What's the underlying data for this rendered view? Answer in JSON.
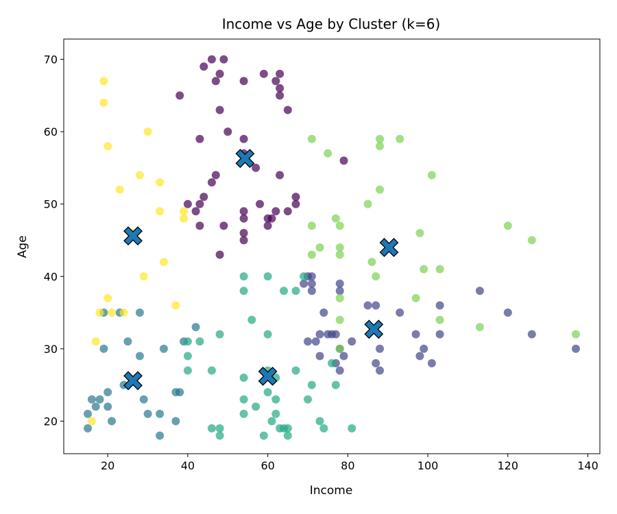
{
  "chart_data": {
    "type": "scatter",
    "title": "Income vs Age by Cluster (k=6)",
    "xlabel": "Income",
    "ylabel": "Age",
    "xlim": [
      9,
      143
    ],
    "ylim": [
      15.5,
      72.8
    ],
    "xticks": [
      20,
      40,
      60,
      80,
      100,
      120,
      140
    ],
    "yticks": [
      20,
      30,
      40,
      50,
      60,
      70
    ],
    "grid": false,
    "legend": "none",
    "colors": {
      "cluster_0": "#440154",
      "cluster_1": "#414487",
      "cluster_2": "#2a788e",
      "cluster_3": "#22a884",
      "cluster_4": "#7ad151",
      "cluster_5": "#fde725",
      "centroid": "#1f77b4"
    },
    "series": [
      {
        "cluster": 0,
        "points": [
          [
            46,
            70
          ],
          [
            49,
            70
          ],
          [
            44,
            69
          ],
          [
            48,
            68
          ],
          [
            59,
            68
          ],
          [
            63,
            68
          ],
          [
            47,
            67
          ],
          [
            54,
            67
          ],
          [
            62,
            67
          ],
          [
            63,
            66
          ],
          [
            63,
            65
          ],
          [
            38,
            65
          ],
          [
            48,
            63
          ],
          [
            65,
            63
          ],
          [
            50,
            60
          ],
          [
            43,
            59
          ],
          [
            54,
            59
          ],
          [
            54,
            57
          ],
          [
            57,
            55
          ],
          [
            79,
            56
          ],
          [
            47,
            54
          ],
          [
            63,
            54
          ],
          [
            46,
            53
          ],
          [
            67,
            51
          ],
          [
            44,
            51
          ],
          [
            43,
            50
          ],
          [
            58,
            50
          ],
          [
            67,
            50
          ],
          [
            40,
            50
          ],
          [
            42,
            49
          ],
          [
            54,
            49
          ],
          [
            62,
            49
          ],
          [
            65,
            49
          ],
          [
            54,
            48
          ],
          [
            60,
            48
          ],
          [
            61,
            48
          ],
          [
            43,
            47
          ],
          [
            49,
            47
          ],
          [
            60,
            47
          ],
          [
            54,
            46
          ],
          [
            54,
            45
          ],
          [
            48,
            43
          ]
        ]
      },
      {
        "cluster": 1,
        "points": [
          [
            70,
            40
          ],
          [
            71,
            40
          ],
          [
            69,
            39
          ],
          [
            71,
            39
          ],
          [
            78,
            39
          ],
          [
            71,
            38
          ],
          [
            78,
            38
          ],
          [
            113,
            38
          ],
          [
            74,
            35
          ],
          [
            93,
            35
          ],
          [
            120,
            35
          ],
          [
            85,
            36
          ],
          [
            87,
            36
          ],
          [
            103,
            36
          ],
          [
            73,
            32
          ],
          [
            75,
            32
          ],
          [
            76,
            32
          ],
          [
            77,
            32
          ],
          [
            97,
            32
          ],
          [
            103,
            32
          ],
          [
            126,
            32
          ],
          [
            70,
            31
          ],
          [
            72,
            31
          ],
          [
            81,
            31
          ],
          [
            78,
            30
          ],
          [
            88,
            30
          ],
          [
            99,
            30
          ],
          [
            137,
            30
          ],
          [
            73,
            29
          ],
          [
            79,
            29
          ],
          [
            98,
            29
          ],
          [
            77,
            28
          ],
          [
            87,
            28
          ],
          [
            101,
            28
          ],
          [
            78,
            27
          ],
          [
            88,
            27
          ]
        ]
      },
      {
        "cluster": 2,
        "points": [
          [
            19,
            35
          ],
          [
            23,
            35
          ],
          [
            28,
            35
          ],
          [
            39,
            31
          ],
          [
            25,
            31
          ],
          [
            42,
            33
          ],
          [
            19,
            30
          ],
          [
            34,
            30
          ],
          [
            28,
            29
          ],
          [
            24,
            25
          ],
          [
            20,
            24
          ],
          [
            37,
            24
          ],
          [
            38,
            24
          ],
          [
            16,
            23
          ],
          [
            18,
            23
          ],
          [
            29,
            23
          ],
          [
            17,
            22
          ],
          [
            20,
            22
          ],
          [
            30,
            21
          ],
          [
            33,
            21
          ],
          [
            15,
            21
          ],
          [
            21,
            20
          ],
          [
            37,
            20
          ],
          [
            15,
            19
          ],
          [
            33,
            18
          ]
        ]
      },
      {
        "cluster": 3,
        "points": [
          [
            54,
            40
          ],
          [
            60,
            40
          ],
          [
            54,
            38
          ],
          [
            64,
            38
          ],
          [
            67,
            38
          ],
          [
            69,
            40
          ],
          [
            56,
            34
          ],
          [
            48,
            32
          ],
          [
            60,
            32
          ],
          [
            40,
            31
          ],
          [
            43,
            31
          ],
          [
            40,
            29
          ],
          [
            40,
            27
          ],
          [
            46,
            27
          ],
          [
            67,
            27
          ],
          [
            76,
            28
          ],
          [
            54,
            26
          ],
          [
            62,
            26
          ],
          [
            60,
            27
          ],
          [
            71,
            25
          ],
          [
            77,
            25
          ],
          [
            60,
            24
          ],
          [
            54,
            23
          ],
          [
            62,
            23
          ],
          [
            70,
            23
          ],
          [
            57,
            22
          ],
          [
            54,
            21
          ],
          [
            62,
            21
          ],
          [
            61,
            20
          ],
          [
            73,
            20
          ],
          [
            63,
            19
          ],
          [
            64,
            19
          ],
          [
            65,
            19
          ],
          [
            46,
            19
          ],
          [
            48,
            19
          ],
          [
            74,
            19
          ],
          [
            81,
            19
          ],
          [
            48,
            18
          ],
          [
            59,
            18
          ],
          [
            65,
            18
          ]
        ]
      },
      {
        "cluster": 4,
        "points": [
          [
            71,
            59
          ],
          [
            88,
            59
          ],
          [
            93,
            59
          ],
          [
            75,
            57
          ],
          [
            88,
            58
          ],
          [
            101,
            54
          ],
          [
            88,
            52
          ],
          [
            85,
            50
          ],
          [
            77,
            48
          ],
          [
            71,
            47
          ],
          [
            78,
            47
          ],
          [
            120,
            47
          ],
          [
            98,
            46
          ],
          [
            126,
            45
          ],
          [
            73,
            44
          ],
          [
            78,
            44
          ],
          [
            78,
            43
          ],
          [
            71,
            43
          ],
          [
            86,
            42
          ],
          [
            99,
            41
          ],
          [
            103,
            41
          ],
          [
            87,
            40
          ],
          [
            78,
            37
          ],
          [
            97,
            37
          ],
          [
            78,
            34
          ],
          [
            103,
            34
          ],
          [
            113,
            33
          ],
          [
            137,
            32
          ],
          [
            78,
            30
          ]
        ]
      },
      {
        "cluster": 5,
        "points": [
          [
            19,
            67
          ],
          [
            19,
            64
          ],
          [
            30,
            60
          ],
          [
            20,
            58
          ],
          [
            28,
            54
          ],
          [
            23,
            52
          ],
          [
            33,
            53
          ],
          [
            33,
            49
          ],
          [
            39,
            49
          ],
          [
            39,
            48
          ],
          [
            26,
            46
          ],
          [
            27,
            46
          ],
          [
            34,
            42
          ],
          [
            29,
            40
          ],
          [
            20,
            37
          ],
          [
            18,
            35
          ],
          [
            21,
            35
          ],
          [
            24,
            35
          ],
          [
            37,
            36
          ],
          [
            17,
            31
          ],
          [
            16,
            20
          ]
        ]
      }
    ],
    "centroids": [
      [
        54.3,
        56.3
      ],
      [
        26.3,
        45.6
      ],
      [
        90.3,
        44.0
      ],
      [
        86.5,
        32.7
      ],
      [
        26.3,
        25.6
      ],
      [
        60.0,
        26.2
      ]
    ]
  }
}
